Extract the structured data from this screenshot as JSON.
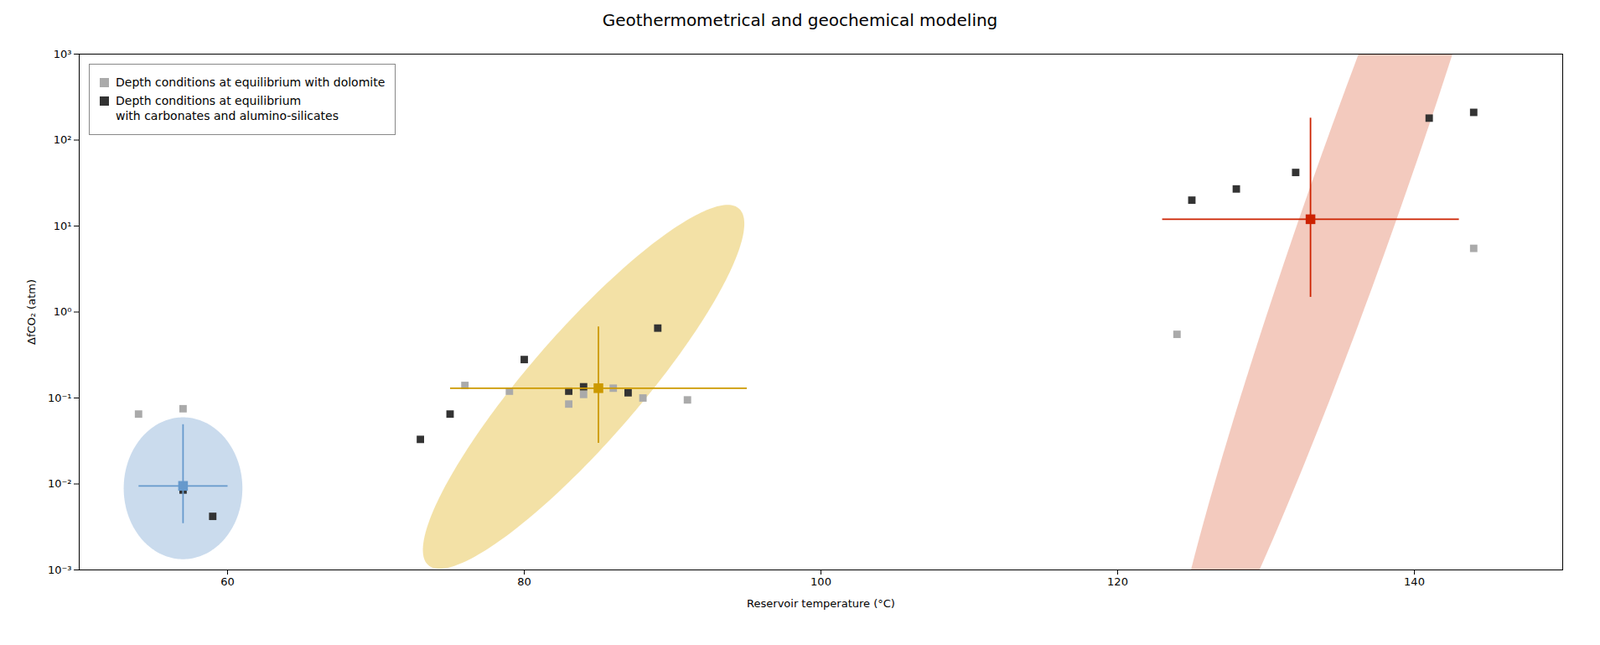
{
  "chart_data": {
    "type": "scatter",
    "title": "Geothermometrical and geochemical modeling",
    "xlabel": "Reservoir temperature (°C)",
    "ylabel": "ΔfCO₂ (atm)",
    "log": "y",
    "xlim": [
      50,
      150
    ],
    "xticks": [
      60,
      80,
      100,
      120,
      140
    ],
    "ylim": [
      0.001,
      1000
    ],
    "yticks": [
      {
        "value": 0.001,
        "label": "10⁻³"
      },
      {
        "value": 0.01,
        "label": "10⁻²"
      },
      {
        "value": 0.1,
        "label": "10⁻¹"
      },
      {
        "value": 1,
        "label": "10⁰"
      },
      {
        "value": 10,
        "label": "10¹"
      },
      {
        "value": 100,
        "label": "10²"
      },
      {
        "value": 1000,
        "label": "10³"
      }
    ],
    "grid": false,
    "legend": "upper left",
    "series": [
      {
        "name": "Depth conditions at equilibrium with dolomite",
        "color": "#aaaaaa",
        "marker": "square",
        "x": [
          54,
          57,
          76,
          79,
          83,
          84,
          86,
          88,
          91,
          124,
          144
        ],
        "values": [
          0.065,
          0.075,
          0.14,
          0.12,
          0.085,
          0.11,
          0.13,
          0.1,
          0.095,
          0.55,
          5.5
        ]
      },
      {
        "name": "Depth conditions at equilibrium\nwith carbonates and alumino-silicates",
        "color": "#333333",
        "marker": "square",
        "x": [
          57,
          59,
          73,
          75,
          80,
          83,
          84,
          87,
          89,
          125,
          128,
          132,
          141,
          144
        ],
        "values": [
          0.0085,
          0.0042,
          0.033,
          0.065,
          0.28,
          0.12,
          0.135,
          0.115,
          0.65,
          20,
          27,
          42,
          180,
          210
        ]
      }
    ],
    "error_bars": [
      {
        "x": 57,
        "y": 0.0095,
        "xerr": 3,
        "yerr_lo": 0.006,
        "yerr_hi": 0.04,
        "color": "#6699cc",
        "marker": "square"
      },
      {
        "x": 85,
        "y": 0.13,
        "xerr": 10,
        "yerr_lo": 0.1,
        "yerr_hi": 0.55,
        "color": "#cc9900",
        "marker": "square"
      },
      {
        "x": 133,
        "y": 12,
        "xerr": 10,
        "yerr_lo": 10.5,
        "yerr_hi": 170,
        "color": "#cc2200",
        "marker": "square"
      }
    ],
    "ellipses": [
      {
        "cx": 57,
        "cy_log": -2.05,
        "width": 8,
        "height_log": 1.65,
        "angle": 0,
        "color": "#6699cc"
      },
      {
        "cx": 84,
        "cy_log": -0.87,
        "width": 22,
        "height_log": 1.85,
        "angle": 10,
        "color": "#ddaa00"
      },
      {
        "cx": 136,
        "cy_log": 1.32,
        "width": 28,
        "height_log": 2.85,
        "angle": 25,
        "color": "#dd6644"
      }
    ]
  }
}
